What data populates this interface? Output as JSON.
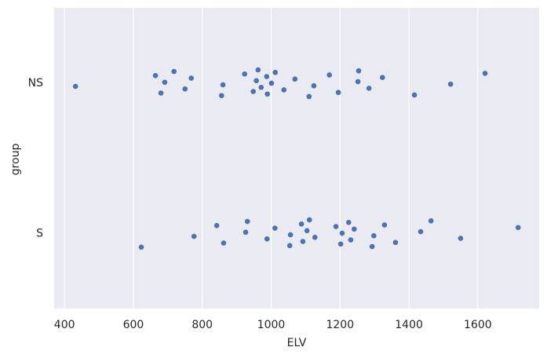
{
  "chart_data": {
    "type": "strip",
    "xlabel": "ELV",
    "ylabel": "group",
    "categories": [
      "NS",
      "S"
    ],
    "values": [
      [
        432,
        664,
        680,
        691,
        718,
        750,
        768,
        856,
        860,
        923,
        948,
        957,
        962,
        971,
        987,
        989,
        1001,
        1012,
        1037,
        1069,
        1110,
        1124,
        1169,
        1195,
        1252,
        1254,
        1284,
        1323,
        1416,
        1521,
        1621
      ],
      [
        623,
        776,
        842,
        862,
        926,
        931,
        988,
        1011,
        1054,
        1056,
        1088,
        1092,
        1104,
        1111,
        1127,
        1188,
        1202,
        1206,
        1225,
        1231,
        1241,
        1293,
        1298,
        1329,
        1361,
        1434,
        1464,
        1550,
        1717
      ]
    ],
    "color": "#4c72b0",
    "xlim": [
      370,
      1778
    ],
    "xticks": [
      400,
      600,
      800,
      1000,
      1200,
      1400,
      1600
    ],
    "grid": true
  }
}
